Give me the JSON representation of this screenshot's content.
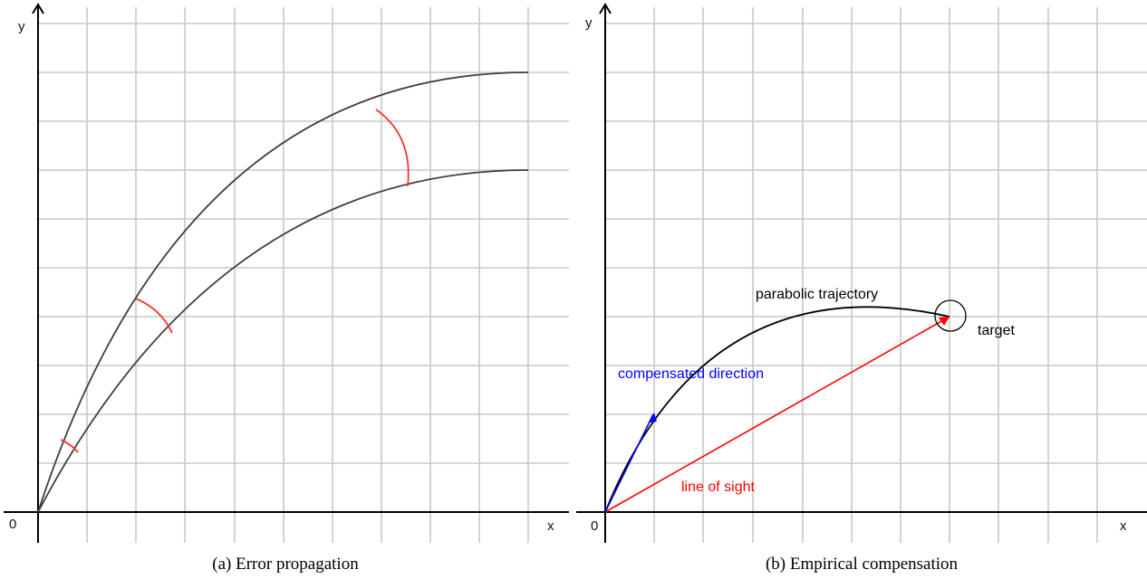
{
  "panel_a": {
    "axis_y": "y",
    "axis_x": "x",
    "origin": "0",
    "caption": "(a) Error propagation"
  },
  "panel_b": {
    "axis_y": "y",
    "axis_x": "x",
    "origin": "0",
    "trajectory_label": "parabolic trajectory",
    "target_label": "target",
    "compensated_label": "compensated direction",
    "sight_label": "line of sight",
    "caption": "(b) Empirical compensation"
  },
  "colors": {
    "grid": "#c8c8c8",
    "axis": "#000000",
    "curve": "#404040",
    "error_arc": "#ff3333",
    "line_of_sight": "#ff0000",
    "compensated": "#0000ff"
  }
}
